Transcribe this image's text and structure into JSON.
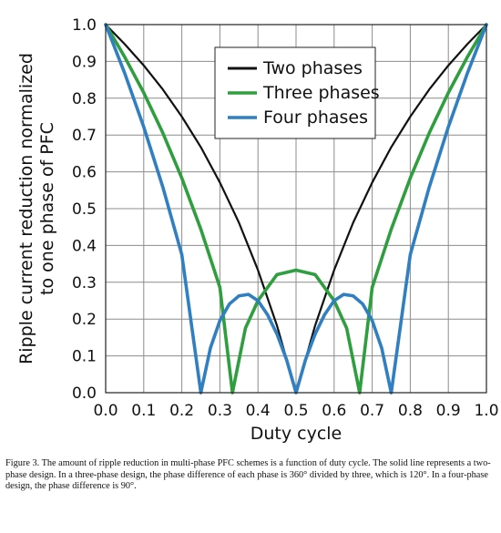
{
  "chart_data": {
    "type": "line",
    "xlabel": "Duty cycle",
    "ylabel_lines": [
      "Ripple current reduction normalized",
      "to one phase of PFC"
    ],
    "xlim": [
      0.0,
      1.0
    ],
    "ylim": [
      0.0,
      1.0
    ],
    "x_ticks": [
      "0.0",
      "0.1",
      "0.2",
      "0.3",
      "0.4",
      "0.5",
      "0.6",
      "0.7",
      "0.8",
      "0.9",
      "1.0"
    ],
    "y_ticks": [
      "0.0",
      "0.1",
      "0.2",
      "0.3",
      "0.4",
      "0.5",
      "0.6",
      "0.7",
      "0.8",
      "0.9",
      "1.0"
    ],
    "grid": true,
    "legend_position": "top-right",
    "series": [
      {
        "name": "Two phases",
        "color": "#111111",
        "x": [
          0.0,
          0.05,
          0.1,
          0.15,
          0.2,
          0.25,
          0.3,
          0.35,
          0.4,
          0.45,
          0.5,
          0.55,
          0.6,
          0.65,
          0.7,
          0.75,
          0.8,
          0.85,
          0.9,
          0.95,
          1.0
        ],
        "y": [
          1.0,
          0.947,
          0.889,
          0.824,
          0.75,
          0.667,
          0.571,
          0.462,
          0.333,
          0.182,
          0.0,
          0.182,
          0.333,
          0.462,
          0.571,
          0.667,
          0.75,
          0.824,
          0.889,
          0.947,
          1.0
        ]
      },
      {
        "name": "Three phases",
        "color": "#2e9e3e",
        "x": [
          0.0,
          0.05,
          0.1,
          0.15,
          0.2,
          0.25,
          0.3,
          0.333,
          0.367,
          0.4,
          0.45,
          0.5,
          0.55,
          0.6,
          0.633,
          0.667,
          0.7,
          0.75,
          0.8,
          0.85,
          0.9,
          0.95,
          1.0
        ],
        "y": [
          1.0,
          0.912,
          0.815,
          0.706,
          0.583,
          0.444,
          0.286,
          0.0,
          0.175,
          0.25,
          0.321,
          0.333,
          0.321,
          0.25,
          0.175,
          0.0,
          0.286,
          0.444,
          0.583,
          0.706,
          0.815,
          0.912,
          1.0
        ]
      },
      {
        "name": "Four phases",
        "color": "#2f7fc1",
        "x": [
          0.0,
          0.05,
          0.1,
          0.15,
          0.2,
          0.25,
          0.275,
          0.3,
          0.325,
          0.35,
          0.375,
          0.4,
          0.425,
          0.45,
          0.475,
          0.5,
          0.525,
          0.55,
          0.575,
          0.6,
          0.625,
          0.65,
          0.675,
          0.7,
          0.725,
          0.75,
          0.8,
          0.85,
          0.9,
          0.95,
          1.0
        ],
        "y": [
          1.0,
          0.868,
          0.722,
          0.559,
          0.375,
          0.0,
          0.121,
          0.196,
          0.241,
          0.263,
          0.267,
          0.25,
          0.212,
          0.159,
          0.09,
          0.0,
          0.09,
          0.159,
          0.212,
          0.25,
          0.267,
          0.263,
          0.241,
          0.196,
          0.121,
          0.0,
          0.375,
          0.559,
          0.722,
          0.868,
          1.0
        ]
      }
    ]
  },
  "caption": "Figure 3. The amount of ripple reduction in multi-phase PFC schemes is a function of duty cycle. The solid line represents a two-phase design. In a three-phase design, the phase difference of each phase is 360° divided by three, which is 120°. In a four-phase design, the phase difference is 90°."
}
